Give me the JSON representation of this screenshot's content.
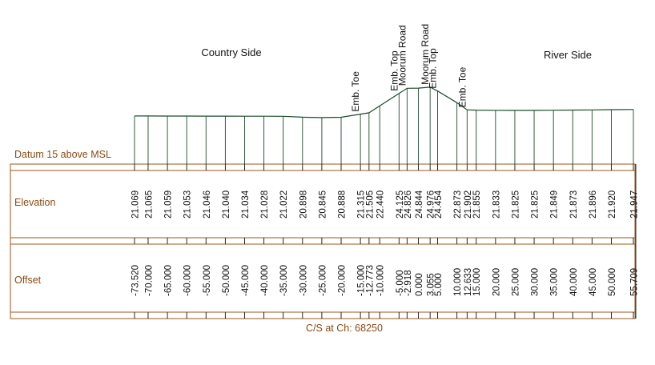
{
  "labels": {
    "country_side": "Country Side",
    "river_side": "River Side",
    "datum": "Datum 15 above MSL",
    "elevation": "Elevation",
    "offset": "Offset",
    "caption": "C/S at Ch: 68250"
  },
  "colors": {
    "profile": "#1c4b2a",
    "frame": "#9a5a1a",
    "label": "#8b4a12",
    "text": "#111111"
  },
  "points": [
    {
      "offset": "-73.520",
      "elevation": "21.069",
      "o": -73.52,
      "e": 21.069
    },
    {
      "offset": "-70.000",
      "elevation": "21.065",
      "o": -70.0,
      "e": 21.065
    },
    {
      "offset": "-65.000",
      "elevation": "21.059",
      "o": -65.0,
      "e": 21.059
    },
    {
      "offset": "-60.000",
      "elevation": "21.053",
      "o": -60.0,
      "e": 21.053
    },
    {
      "offset": "-55.000",
      "elevation": "21.046",
      "o": -55.0,
      "e": 21.046
    },
    {
      "offset": "-50.000",
      "elevation": "21.040",
      "o": -50.0,
      "e": 21.04
    },
    {
      "offset": "-45.000",
      "elevation": "21.034",
      "o": -45.0,
      "e": 21.034
    },
    {
      "offset": "-40.000",
      "elevation": "21.028",
      "o": -40.0,
      "e": 21.028
    },
    {
      "offset": "-35.000",
      "elevation": "21.022",
      "o": -35.0,
      "e": 21.022
    },
    {
      "offset": "-30.000",
      "elevation": "20.898",
      "o": -30.0,
      "e": 20.898
    },
    {
      "offset": "-25.000",
      "elevation": "20.845",
      "o": -25.0,
      "e": 20.845
    },
    {
      "offset": "-20.000",
      "elevation": "20.888",
      "o": -20.0,
      "e": 20.888
    },
    {
      "offset": "-15.000",
      "elevation": "21.315",
      "o": -15.0,
      "e": 21.315,
      "marker": "Emb. Toe"
    },
    {
      "offset": "-12.773",
      "elevation": "21.505",
      "o": -12.773,
      "e": 21.505
    },
    {
      "offset": "-10.000",
      "elevation": "22.440",
      "o": -10.0,
      "e": 22.44
    },
    {
      "offset": "-5.000",
      "elevation": "24.125",
      "o": -5.0,
      "e": 24.125,
      "marker": "Emb. Top"
    },
    {
      "offset": "-2.918",
      "elevation": "24.826",
      "o": -2.918,
      "e": 24.826,
      "marker": "Moorum Road"
    },
    {
      "offset": "0.000",
      "elevation": "24.844",
      "o": 0.0,
      "e": 24.844
    },
    {
      "offset": "3.055",
      "elevation": "24.976",
      "o": 3.055,
      "e": 24.976,
      "marker": "Moorum Road"
    },
    {
      "offset": "5.000",
      "elevation": "24.454",
      "o": 5.0,
      "e": 24.454,
      "marker": "Emb. Top"
    },
    {
      "offset": "10.000",
      "elevation": "22.873",
      "o": 10.0,
      "e": 22.873
    },
    {
      "offset": "12.633",
      "elevation": "21.902",
      "o": 12.633,
      "e": 21.902,
      "marker": "Emb. Toe"
    },
    {
      "offset": "15.000",
      "elevation": "21.855",
      "o": 15.0,
      "e": 21.855
    },
    {
      "offset": "20.000",
      "elevation": "21.833",
      "o": 20.0,
      "e": 21.833
    },
    {
      "offset": "25.000",
      "elevation": "21.825",
      "o": 25.0,
      "e": 21.825
    },
    {
      "offset": "30.000",
      "elevation": "21.825",
      "o": 30.0,
      "e": 21.825
    },
    {
      "offset": "35.000",
      "elevation": "21.849",
      "o": 35.0,
      "e": 21.849
    },
    {
      "offset": "40.000",
      "elevation": "21.873",
      "o": 40.0,
      "e": 21.873
    },
    {
      "offset": "45.000",
      "elevation": "21.896",
      "o": 45.0,
      "e": 21.896
    },
    {
      "offset": "50.000",
      "elevation": "21.920",
      "o": 50.0,
      "e": 21.92
    },
    {
      "offset": "55.709",
      "elevation": "21.947",
      "o": 55.709,
      "e": 21.947
    }
  ]
}
